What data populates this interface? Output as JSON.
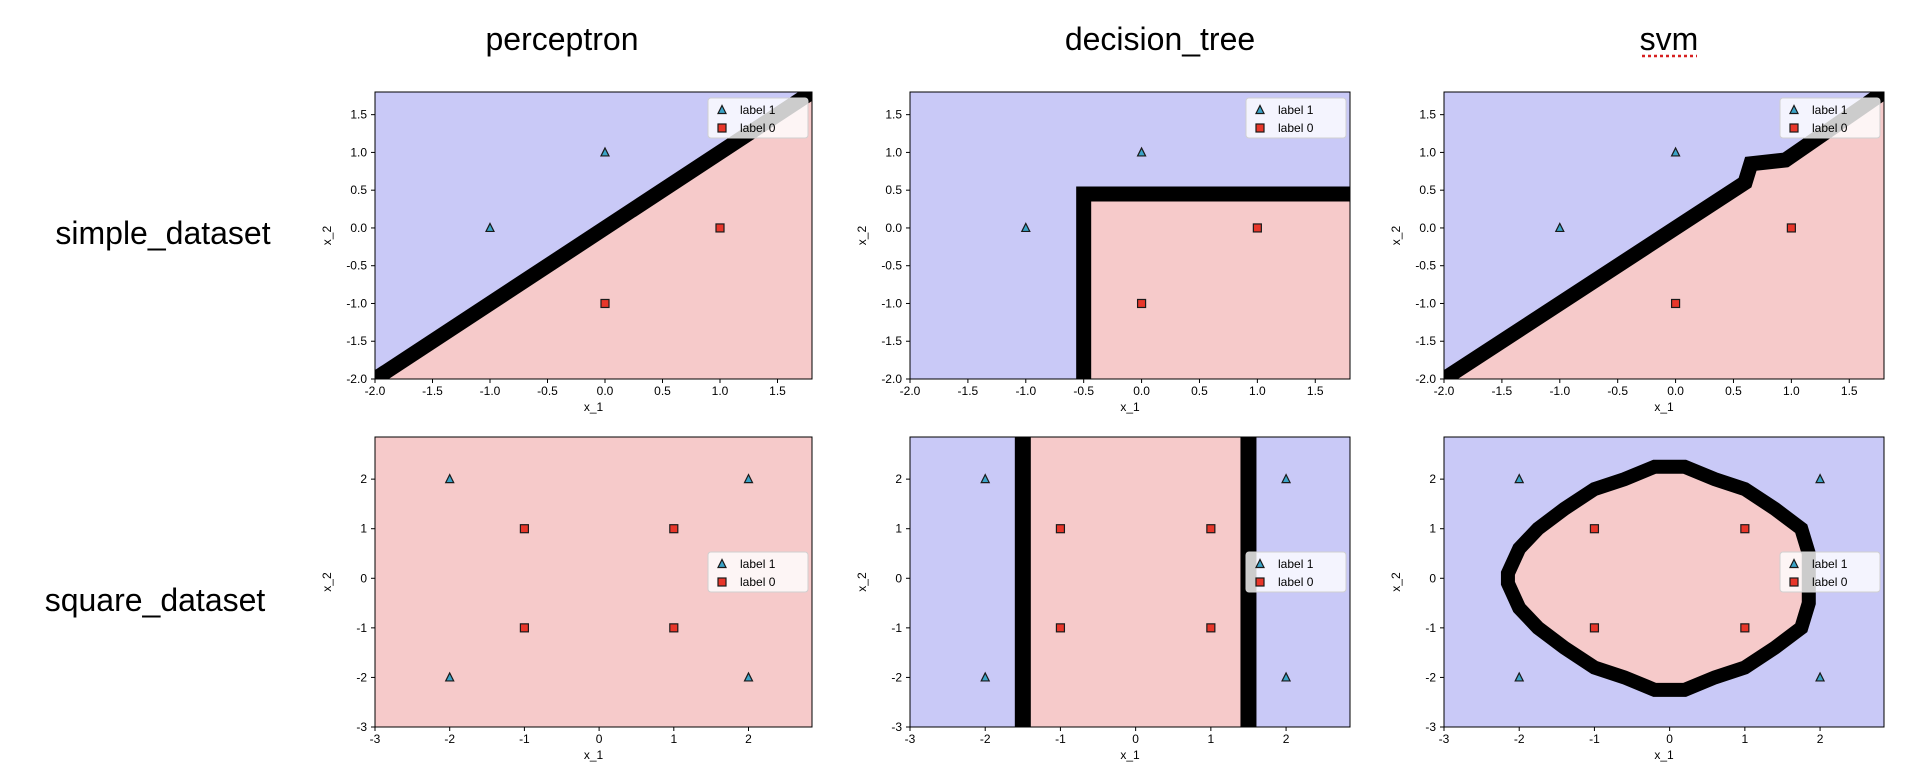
{
  "columns": [
    "perceptron",
    "decision_tree",
    "svm"
  ],
  "rows": [
    "simple_dataset",
    "square_dataset"
  ],
  "colors": {
    "region_label1": "#c9c9f7",
    "region_label0": "#f6caca",
    "boundary": "#000000",
    "marker_label1": "#3aa3c7",
    "marker_label0": "#e8362a",
    "marker_edge": "#1a1a1a"
  },
  "legend": {
    "items": [
      {
        "label": "label 1",
        "marker": "triangle"
      },
      {
        "label": "label 0",
        "marker": "square"
      }
    ]
  },
  "chart_data": [
    {
      "type": "scatter",
      "row": "simple_dataset",
      "col": "perceptron",
      "xlabel": "x_1",
      "ylabel": "x_2",
      "xlim": [
        -2.0,
        1.8
      ],
      "ylim": [
        -2.0,
        1.8
      ],
      "xticks": [
        "-2.0",
        "-1.5",
        "-1.0",
        "-0.5",
        "0.0",
        "0.5",
        "1.0",
        "1.5"
      ],
      "yticks": [
        "-2.0",
        "-1.5",
        "-1.0",
        "-0.5",
        "0.0",
        "0.5",
        "1.0",
        "1.5"
      ],
      "legend_position": "upper right",
      "series": [
        {
          "name": "label 1",
          "marker": "triangle",
          "points": [
            [
              -1,
              0
            ],
            [
              0,
              1
            ]
          ]
        },
        {
          "name": "label 0",
          "marker": "square",
          "points": [
            [
              1,
              0
            ],
            [
              0,
              -1
            ]
          ]
        }
      ],
      "boundary": {
        "kind": "line",
        "points": [
          [
            -2.0,
            -2.0
          ],
          [
            1.8,
            1.8
          ]
        ]
      }
    },
    {
      "type": "scatter",
      "row": "simple_dataset",
      "col": "decision_tree",
      "xlabel": "x_1",
      "ylabel": "x_2",
      "xlim": [
        -2.0,
        1.8
      ],
      "ylim": [
        -2.0,
        1.8
      ],
      "xticks": [
        "-2.0",
        "-1.5",
        "-1.0",
        "-0.5",
        "0.0",
        "0.5",
        "1.0",
        "1.5"
      ],
      "yticks": [
        "-2.0",
        "-1.5",
        "-1.0",
        "-0.5",
        "0.0",
        "0.5",
        "1.0",
        "1.5"
      ],
      "legend_position": "upper right",
      "series": [
        {
          "name": "label 1",
          "marker": "triangle",
          "points": [
            [
              -1,
              0
            ],
            [
              0,
              1
            ]
          ]
        },
        {
          "name": "label 0",
          "marker": "square",
          "points": [
            [
              1,
              0
            ],
            [
              0,
              -1
            ]
          ]
        }
      ],
      "boundary": {
        "kind": "polyline",
        "points": [
          [
            -0.5,
            -2.0
          ],
          [
            -0.5,
            0.45
          ],
          [
            1.8,
            0.45
          ]
        ]
      }
    },
    {
      "type": "scatter",
      "row": "simple_dataset",
      "col": "svm",
      "xlabel": "x_1",
      "ylabel": "x_2",
      "xlim": [
        -2.0,
        1.8
      ],
      "ylim": [
        -2.0,
        1.8
      ],
      "xticks": [
        "-2.0",
        "-1.5",
        "-1.0",
        "-0.5",
        "0.0",
        "0.5",
        "1.0",
        "1.5"
      ],
      "yticks": [
        "-2.0",
        "-1.5",
        "-1.0",
        "-0.5",
        "0.0",
        "0.5",
        "1.0",
        "1.5"
      ],
      "legend_position": "upper right",
      "series": [
        {
          "name": "label 1",
          "marker": "triangle",
          "points": [
            [
              -1,
              0
            ],
            [
              0,
              1
            ]
          ]
        },
        {
          "name": "label 0",
          "marker": "square",
          "points": [
            [
              1,
              0
            ],
            [
              0,
              -1
            ]
          ]
        }
      ],
      "boundary": {
        "kind": "polyline",
        "points": [
          [
            -2.0,
            -2.0
          ],
          [
            0.6,
            0.6
          ],
          [
            0.65,
            0.85
          ],
          [
            0.95,
            0.9
          ],
          [
            1.8,
            1.8
          ]
        ]
      }
    },
    {
      "type": "scatter",
      "row": "square_dataset",
      "col": "perceptron",
      "xlabel": "x_1",
      "ylabel": "x_2",
      "xlim": [
        -3,
        2.85
      ],
      "ylim": [
        -3,
        2.85
      ],
      "xticks": [
        "-3",
        "-2",
        "-1",
        "0",
        "1",
        "2"
      ],
      "yticks": [
        "-3",
        "-2",
        "-1",
        "0",
        "1",
        "2"
      ],
      "legend_position": "center right",
      "series": [
        {
          "name": "label 1",
          "marker": "triangle",
          "points": [
            [
              -2,
              2
            ],
            [
              2,
              2
            ],
            [
              -2,
              -2
            ],
            [
              2,
              -2
            ]
          ]
        },
        {
          "name": "label 0",
          "marker": "square",
          "points": [
            [
              -1,
              1
            ],
            [
              1,
              1
            ],
            [
              -1,
              -1
            ],
            [
              1,
              -1
            ]
          ]
        }
      ],
      "boundary": {
        "kind": "none",
        "points": []
      }
    },
    {
      "type": "scatter",
      "row": "square_dataset",
      "col": "decision_tree",
      "xlabel": "x_1",
      "ylabel": "x_2",
      "xlim": [
        -3,
        2.85
      ],
      "ylim": [
        -3,
        2.85
      ],
      "xticks": [
        "-3",
        "-2",
        "-1",
        "0",
        "1",
        "2"
      ],
      "yticks": [
        "-3",
        "-2",
        "-1",
        "0",
        "1",
        "2"
      ],
      "legend_position": "center right",
      "series": [
        {
          "name": "label 1",
          "marker": "triangle",
          "points": [
            [
              -2,
              2
            ],
            [
              2,
              2
            ],
            [
              -2,
              -2
            ],
            [
              2,
              -2
            ]
          ]
        },
        {
          "name": "label 0",
          "marker": "square",
          "points": [
            [
              -1,
              1
            ],
            [
              1,
              1
            ],
            [
              -1,
              -1
            ],
            [
              1,
              -1
            ]
          ]
        }
      ],
      "boundary": {
        "kind": "vbands",
        "points": [
          [
            -1.5,
            0
          ],
          [
            1.5,
            0
          ]
        ]
      }
    },
    {
      "type": "scatter",
      "row": "square_dataset",
      "col": "svm",
      "xlabel": "x_1",
      "ylabel": "x_2",
      "xlim": [
        -3,
        2.85
      ],
      "ylim": [
        -3,
        2.85
      ],
      "xticks": [
        "-3",
        "-2",
        "-1",
        "0",
        "1",
        "2"
      ],
      "yticks": [
        "-3",
        "-2",
        "-1",
        "0",
        "1",
        "2"
      ],
      "legend_position": "center right",
      "series": [
        {
          "name": "label 1",
          "marker": "triangle",
          "points": [
            [
              -2,
              2
            ],
            [
              2,
              2
            ],
            [
              -2,
              -2
            ],
            [
              2,
              -2
            ]
          ]
        },
        {
          "name": "label 0",
          "marker": "square",
          "points": [
            [
              -1,
              1
            ],
            [
              1,
              1
            ],
            [
              -1,
              -1
            ],
            [
              1,
              -1
            ]
          ]
        }
      ],
      "boundary": {
        "kind": "polygon",
        "points": [
          [
            -2.15,
            0.1
          ],
          [
            -2.0,
            0.6
          ],
          [
            -1.75,
            1.0
          ],
          [
            -1.4,
            1.4
          ],
          [
            -1.0,
            1.8
          ],
          [
            -0.6,
            2.0
          ],
          [
            -0.2,
            2.25
          ],
          [
            0.2,
            2.25
          ],
          [
            0.6,
            2.0
          ],
          [
            1.0,
            1.8
          ],
          [
            1.4,
            1.4
          ],
          [
            1.75,
            1.0
          ],
          [
            1.85,
            0.5
          ],
          [
            1.85,
            -0.5
          ],
          [
            1.75,
            -1.0
          ],
          [
            1.4,
            -1.4
          ],
          [
            1.0,
            -1.8
          ],
          [
            0.6,
            -2.0
          ],
          [
            0.2,
            -2.25
          ],
          [
            -0.2,
            -2.25
          ],
          [
            -0.6,
            -2.0
          ],
          [
            -1.0,
            -1.8
          ],
          [
            -1.4,
            -1.4
          ],
          [
            -1.75,
            -1.0
          ],
          [
            -2.0,
            -0.6
          ],
          [
            -2.15,
            -0.1
          ]
        ]
      }
    }
  ]
}
